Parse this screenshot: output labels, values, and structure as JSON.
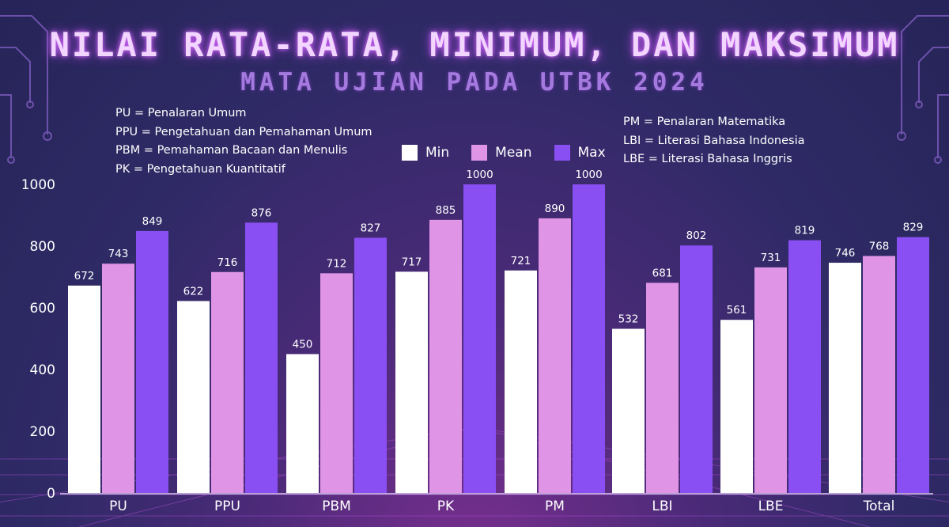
{
  "title": "Nilai Rata-Rata, Minimum, dan Maksimum",
  "subtitle": "MATA UJIAN PADA UTBK 2024",
  "abbreviations_left": [
    "PU = Penalaran Umum",
    "PPU = Pengetahuan dan Pemahaman Umum",
    "PBM = Pemahaman Bacaan dan Menulis",
    "PK = Pengetahuan Kuantitatif"
  ],
  "abbreviations_right": [
    "PM = Penalaran Matematika",
    "LBI = Literasi Bahasa Indonesia",
    "LBE = Literasi Bahasa Inggris"
  ],
  "colors": {
    "min": "#ffffff",
    "mean": "#df94e6",
    "max": "#8a4ff2"
  },
  "chart_data": {
    "type": "bar",
    "categories": [
      "PU",
      "PPU",
      "PBM",
      "PK",
      "PM",
      "LBI",
      "LBE",
      "Total"
    ],
    "series": [
      {
        "name": "Min",
        "values": [
          672,
          622,
          450,
          717,
          721,
          532,
          561,
          746
        ]
      },
      {
        "name": "Mean",
        "values": [
          743,
          716,
          712,
          885,
          890,
          681,
          731,
          768
        ]
      },
      {
        "name": "Max",
        "values": [
          849,
          876,
          827,
          1000,
          1000,
          802,
          819,
          829
        ]
      }
    ],
    "ylim": [
      0,
      1000
    ],
    "yticks": [
      0,
      200,
      400,
      600,
      800,
      1000
    ],
    "legend": "top-center",
    "grid": false,
    "data_labels": true
  }
}
